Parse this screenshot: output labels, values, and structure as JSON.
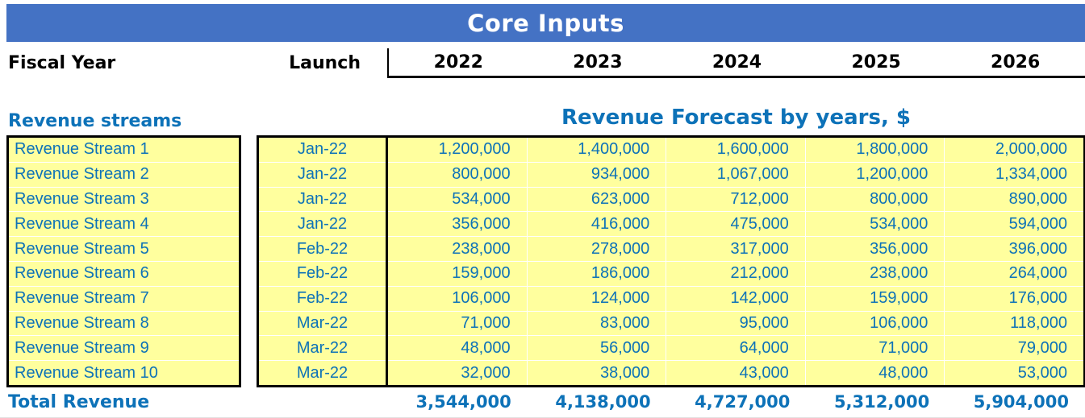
{
  "title_bar": {
    "title": "Core Inputs"
  },
  "header_row": {
    "fiscal_year_label": "Fiscal Year",
    "launch_label": "Launch",
    "years": [
      "2022",
      "2023",
      "2024",
      "2025",
      "2026"
    ]
  },
  "section_headers": {
    "left": "Revenue streams",
    "right": "Revenue Forecast by years, $"
  },
  "colors": {
    "header_bg": "#4472C4",
    "text_blue": "#0d72b8",
    "cell_yellow": "#ffff9e",
    "border_black": "#000000",
    "title_text": "#ffffff"
  },
  "table": {
    "rows": [
      {
        "name": "Revenue Stream 1",
        "launch": "Jan-22",
        "values": [
          "1,200,000",
          "1,400,000",
          "1,600,000",
          "1,800,000",
          "2,000,000"
        ]
      },
      {
        "name": "Revenue Stream 2",
        "launch": "Jan-22",
        "values": [
          "800,000",
          "934,000",
          "1,067,000",
          "1,200,000",
          "1,334,000"
        ]
      },
      {
        "name": "Revenue Stream 3",
        "launch": "Jan-22",
        "values": [
          "534,000",
          "623,000",
          "712,000",
          "800,000",
          "890,000"
        ]
      },
      {
        "name": "Revenue Stream 4",
        "launch": "Jan-22",
        "values": [
          "356,000",
          "416,000",
          "475,000",
          "534,000",
          "594,000"
        ]
      },
      {
        "name": "Revenue Stream 5",
        "launch": "Feb-22",
        "values": [
          "238,000",
          "278,000",
          "317,000",
          "356,000",
          "396,000"
        ]
      },
      {
        "name": "Revenue Stream 6",
        "launch": "Feb-22",
        "values": [
          "159,000",
          "186,000",
          "212,000",
          "238,000",
          "264,000"
        ]
      },
      {
        "name": "Revenue Stream 7",
        "launch": "Feb-22",
        "values": [
          "106,000",
          "124,000",
          "142,000",
          "159,000",
          "176,000"
        ]
      },
      {
        "name": "Revenue Stream 8",
        "launch": "Mar-22",
        "values": [
          "71,000",
          "83,000",
          "95,000",
          "106,000",
          "118,000"
        ]
      },
      {
        "name": "Revenue Stream 9",
        "launch": "Mar-22",
        "values": [
          "48,000",
          "56,000",
          "64,000",
          "71,000",
          "79,000"
        ]
      },
      {
        "name": "Revenue Stream 10",
        "launch": "Mar-22",
        "values": [
          "32,000",
          "38,000",
          "43,000",
          "48,000",
          "53,000"
        ]
      }
    ],
    "total": {
      "label": "Total Revenue",
      "values": [
        "3,544,000",
        "4,138,000",
        "4,727,000",
        "5,312,000",
        "5,904,000"
      ]
    }
  }
}
